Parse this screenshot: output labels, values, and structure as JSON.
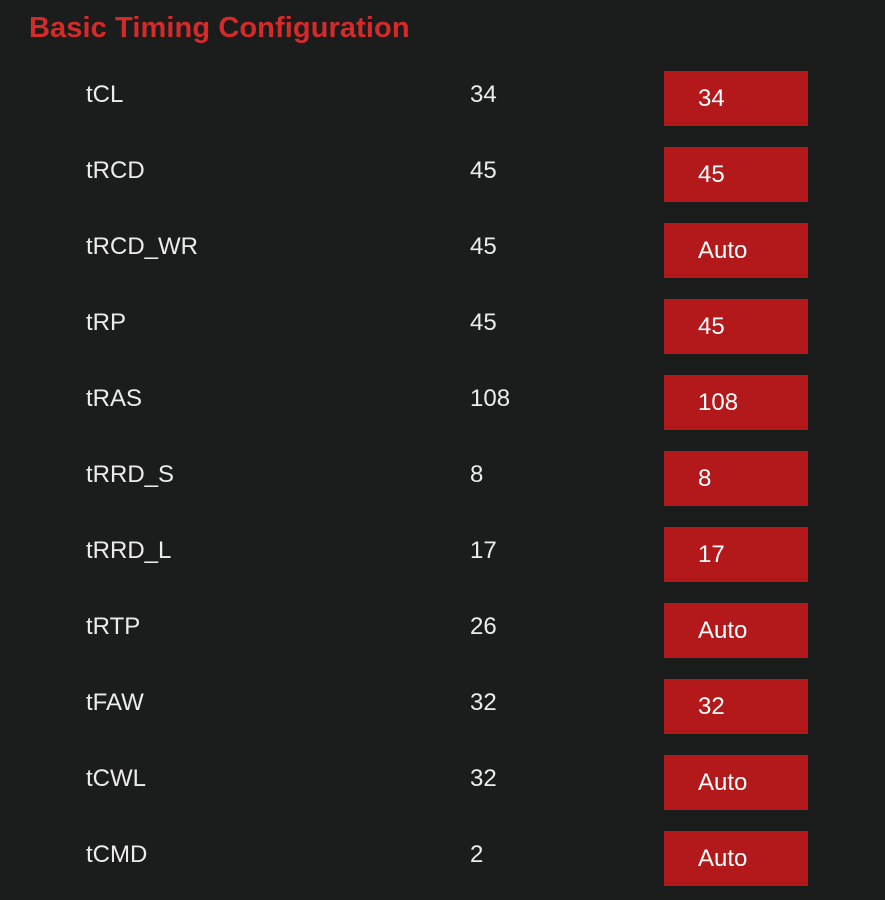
{
  "page": {
    "title": "Basic Timing Configuration"
  },
  "colors": {
    "background": "#1b1d1d",
    "title": "#d42a2a",
    "setting_box": "#b3181b",
    "text": "#ececec"
  },
  "timings": [
    {
      "name": "tCL",
      "current": "34",
      "setting": "34"
    },
    {
      "name": "tRCD",
      "current": "45",
      "setting": "45"
    },
    {
      "name": "tRCD_WR",
      "current": "45",
      "setting": "Auto"
    },
    {
      "name": "tRP",
      "current": "45",
      "setting": "45"
    },
    {
      "name": "tRAS",
      "current": "108",
      "setting": "108"
    },
    {
      "name": "tRRD_S",
      "current": "8",
      "setting": "8"
    },
    {
      "name": "tRRD_L",
      "current": "17",
      "setting": "17"
    },
    {
      "name": "tRTP",
      "current": "26",
      "setting": "Auto"
    },
    {
      "name": "tFAW",
      "current": "32",
      "setting": "32"
    },
    {
      "name": "tCWL",
      "current": "32",
      "setting": "Auto"
    },
    {
      "name": "tCMD",
      "current": "2",
      "setting": "Auto"
    }
  ]
}
